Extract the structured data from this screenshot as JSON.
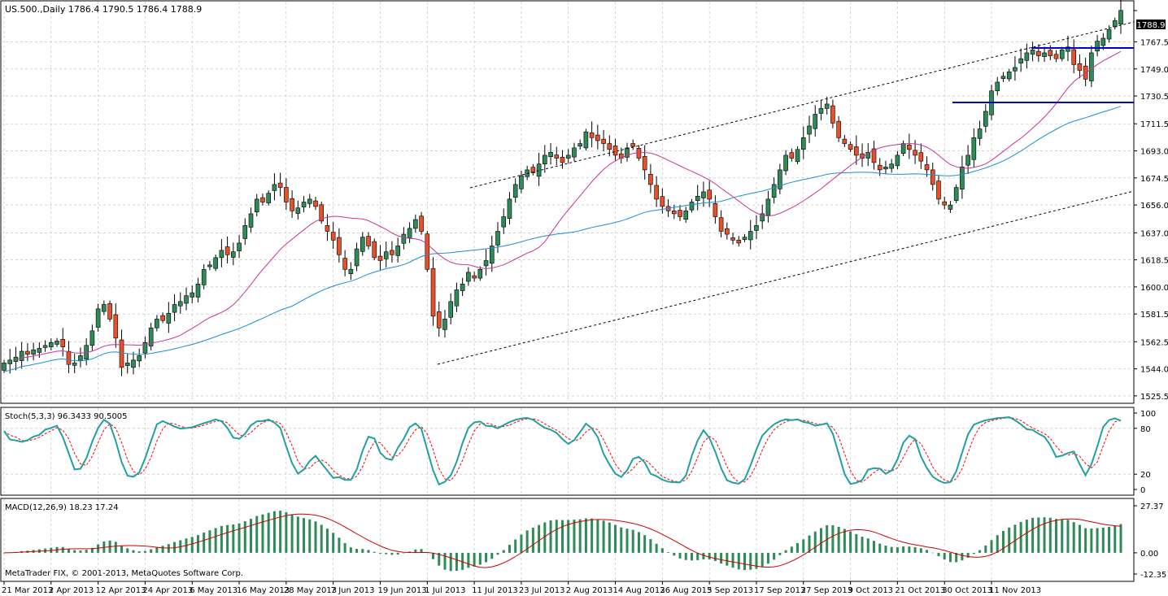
{
  "symbol_header": "US.500.,Daily  1786.4 1790.5 1786.4 1788.9",
  "copyright": "MetaTrader FIX, © 2001-2013, MetaQuotes Software Corp.",
  "price_badge": "1788.9",
  "colors": {
    "bull_candle": "#2e8b57",
    "bear_candle": "#e8502a",
    "ma_fast": "#cc3399",
    "ma_slow": "#1a8fd6",
    "channel": "#000000",
    "support_resistance": "#0000cc",
    "stoch_main": "#20a0a0",
    "stoch_signal": "#ff0000",
    "macd_hist": "#2e8b57",
    "macd_signal": "#cc0000"
  },
  "chart_data": [
    {
      "type": "candlestick",
      "title": "",
      "xlabel": "",
      "ylabel": "",
      "ylim": [
        1521,
        1795
      ],
      "grid": true,
      "y_ticks": [
        "1788.9",
        "1767.5",
        "1749.0",
        "1730.5",
        "1711.5",
        "1693.0",
        "1674.5",
        "1656.0",
        "1637.0",
        "1618.5",
        "1600.0",
        "1581.5",
        "1562.5",
        "1544.0",
        "1525.5"
      ],
      "x_ticks": [
        "21 Mar 2013",
        "2 Apr 2013",
        "12 Apr 2013",
        "24 Apr 2013",
        "6 May 2013",
        "16 May 2013",
        "28 May 2013",
        "7 Jun 2013",
        "19 Jun 2013",
        "1 Jul 2013",
        "11 Jul 2013",
        "23 Jul 2013",
        "2 Aug 2013",
        "14 Aug 2013",
        "26 Aug 2013",
        "5 Sep 2013",
        "17 Sep 2013",
        "27 Sep 2013",
        "9 Oct 2013",
        "21 Oct 2013",
        "30 Oct 2013",
        "11 Nov 2013"
      ],
      "x_tick_index": [
        0,
        8,
        16,
        24,
        32,
        40,
        48,
        56,
        64,
        72,
        80,
        88,
        96,
        104,
        112,
        120,
        128,
        136,
        144,
        152,
        160,
        168
      ],
      "close": [
        1548,
        1550,
        1552,
        1556,
        1554,
        1557,
        1558,
        1560,
        1562,
        1563,
        1559,
        1547,
        1548,
        1553,
        1560,
        1570,
        1585,
        1588,
        1578,
        1565,
        1545,
        1548,
        1550,
        1553,
        1562,
        1572,
        1578,
        1577,
        1582,
        1588,
        1590,
        1594,
        1596,
        1602,
        1612,
        1615,
        1620,
        1625,
        1622,
        1624,
        1630,
        1642,
        1650,
        1660,
        1658,
        1664,
        1670,
        1668,
        1658,
        1652,
        1654,
        1658,
        1660,
        1655,
        1645,
        1638,
        1632,
        1622,
        1612,
        1612,
        1626,
        1634,
        1628,
        1620,
        1618,
        1624,
        1622,
        1628,
        1636,
        1640,
        1646,
        1638,
        1612,
        1580,
        1572,
        1578,
        1590,
        1598,
        1602,
        1610,
        1606,
        1612,
        1618,
        1628,
        1638,
        1648,
        1660,
        1670,
        1676,
        1680,
        1678,
        1684,
        1690,
        1692,
        1688,
        1685,
        1690,
        1695,
        1698,
        1706,
        1702,
        1700,
        1698,
        1694,
        1690,
        1688,
        1695,
        1696,
        1688,
        1680,
        1670,
        1660,
        1655,
        1652,
        1650,
        1648,
        1652,
        1658,
        1662,
        1665,
        1660,
        1648,
        1638,
        1636,
        1632,
        1630,
        1634,
        1638,
        1642,
        1650,
        1660,
        1670,
        1680,
        1690,
        1688,
        1694,
        1702,
        1710,
        1718,
        1722,
        1725,
        1712,
        1702,
        1698,
        1694,
        1690,
        1688,
        1692,
        1685,
        1680,
        1682,
        1684,
        1690,
        1698,
        1694,
        1690,
        1686,
        1680,
        1670,
        1660,
        1656,
        1656,
        1668,
        1682,
        1690,
        1702,
        1708,
        1720,
        1734,
        1740,
        1744,
        1747,
        1750,
        1756,
        1760,
        1762,
        1758,
        1760,
        1758,
        1756,
        1762,
        1764,
        1752,
        1748,
        1742,
        1760,
        1768,
        1770,
        1776,
        1782,
        1789
      ],
      "moving_averages": [
        "fast",
        "slow"
      ]
    },
    {
      "type": "line",
      "title": "Stoch(5,3,3) 96.3433 90.5005",
      "ylim": [
        0,
        100
      ],
      "y_ticks": [
        "100",
        "80",
        "20",
        "0"
      ]
    },
    {
      "type": "bar",
      "title": "MACD(12,26,9) 18.23 17.24",
      "ylim": [
        -12.35,
        27.37
      ],
      "y_ticks": [
        "27.37",
        "0.00",
        "-12.35"
      ]
    }
  ]
}
